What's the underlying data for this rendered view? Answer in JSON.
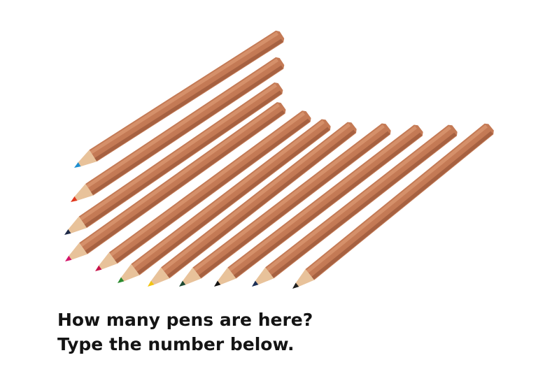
{
  "prompt": {
    "question": "How many pens are here?",
    "instruction": "Type the number below."
  },
  "pencils": [
    {
      "tip_color": "#1f8fd0"
    },
    {
      "tip_color": "#e0361c"
    },
    {
      "tip_color": "#1e2a48"
    },
    {
      "tip_color": "#d4146a"
    },
    {
      "tip_color": "#c8124a"
    },
    {
      "tip_color": "#2b8a2e"
    },
    {
      "tip_color": "#f2c411"
    },
    {
      "tip_color": "#1f4a33"
    },
    {
      "tip_color": "#141414"
    },
    {
      "tip_color": "#1c2f55"
    },
    {
      "tip_color": "#202020"
    }
  ],
  "colors": {
    "wood_body": "#c47a55",
    "wood_light": "#d9966f",
    "wood_dark": "#9c5a3b",
    "shaved_wood": "#e8c29a",
    "text": "#141414"
  }
}
